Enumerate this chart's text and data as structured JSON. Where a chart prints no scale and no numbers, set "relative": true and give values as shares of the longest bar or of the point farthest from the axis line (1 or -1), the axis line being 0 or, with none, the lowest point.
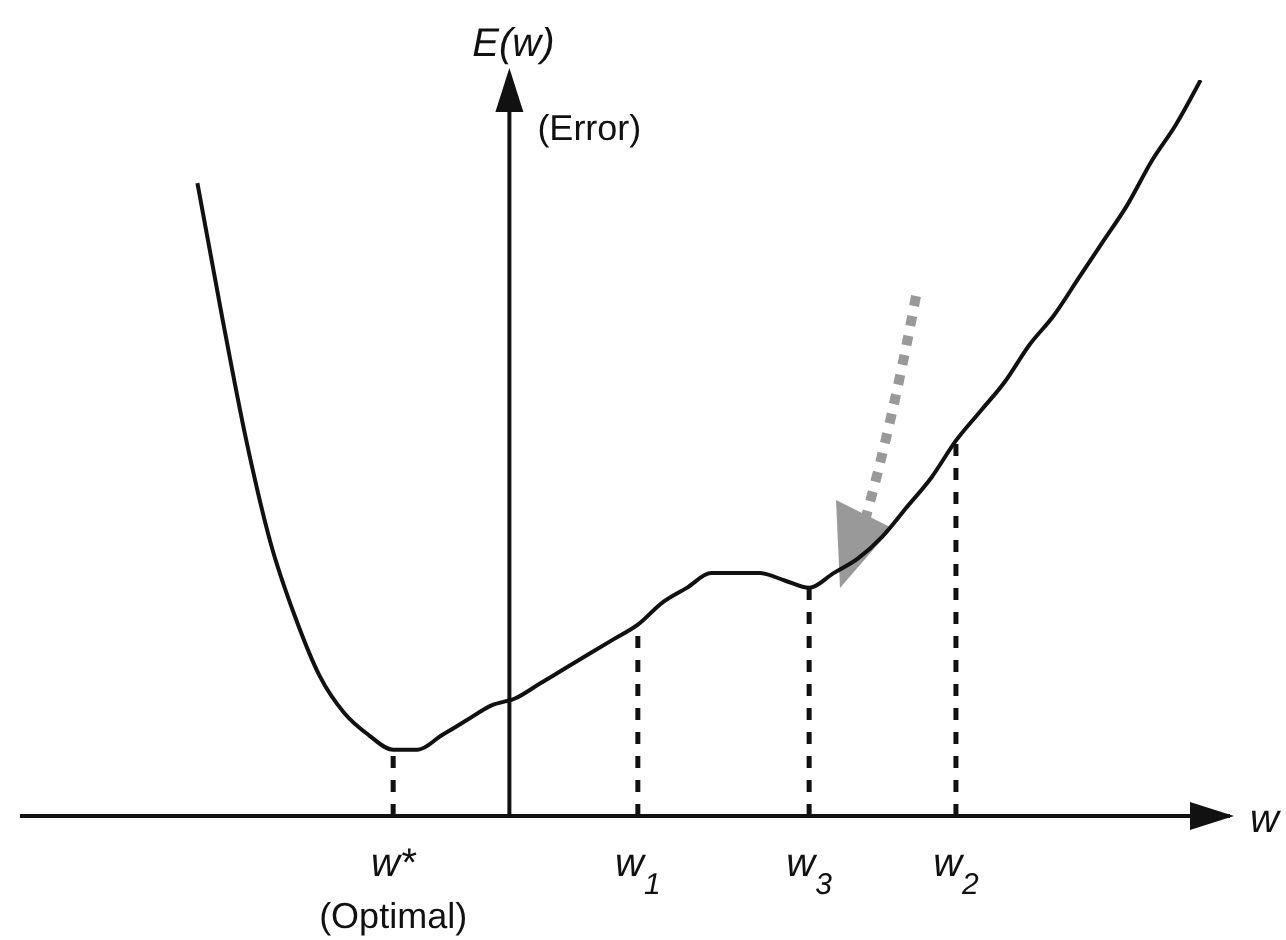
{
  "chart_data": {
    "type": "line",
    "relative": true,
    "xlabel": "w",
    "ylabel": "E(w)",
    "annotations": [
      "(Error)",
      {
        "text": "(Optimal)",
        "x": "w*",
        "y": 0
      }
    ],
    "categories": [
      null,
      null,
      null,
      null,
      null,
      null,
      null,
      null,
      "w*",
      null,
      null,
      null,
      null,
      null,
      null,
      null,
      null,
      null,
      "w$_{1}$",
      null,
      null,
      null,
      null,
      null,
      null,
      "w$_{3}$",
      null,
      null,
      null,
      null,
      null,
      "w$_{2}$",
      null,
      null,
      null,
      null,
      null,
      null,
      null,
      null,
      null,
      null
    ],
    "series": [
      {
        "color": "#111111",
        "values": [
          0.86,
          0.68,
          0.51,
          0.37,
          0.27,
          0.19,
          0.14,
          0.11,
          0.09,
          0.09,
          0.11,
          0.13,
          0.15,
          0.16,
          0.18,
          0.2,
          0.22,
          0.24,
          0.26,
          0.29,
          0.31,
          0.33,
          0.33,
          0.33,
          0.32,
          0.31,
          0.33,
          0.35,
          0.38,
          0.42,
          0.46,
          0.51,
          0.55,
          0.59,
          0.64,
          0.68,
          0.73,
          0.78,
          0.83,
          0.89,
          0.94,
          1.0
        ]
      }
    ],
    "ref_lines": [
      {
        "axis": "x",
        "value": "w*",
        "line_style": "dashed"
      },
      {
        "axis": "x",
        "value": "w$_{1}$",
        "line_style": "dashed"
      },
      {
        "axis": "x",
        "value": "w$_{3}$",
        "line_style": "dashed"
      },
      {
        "axis": "x",
        "value": "w$_{2}$",
        "line_style": "dashed"
      }
    ],
    "grid": false,
    "legend": false
  }
}
